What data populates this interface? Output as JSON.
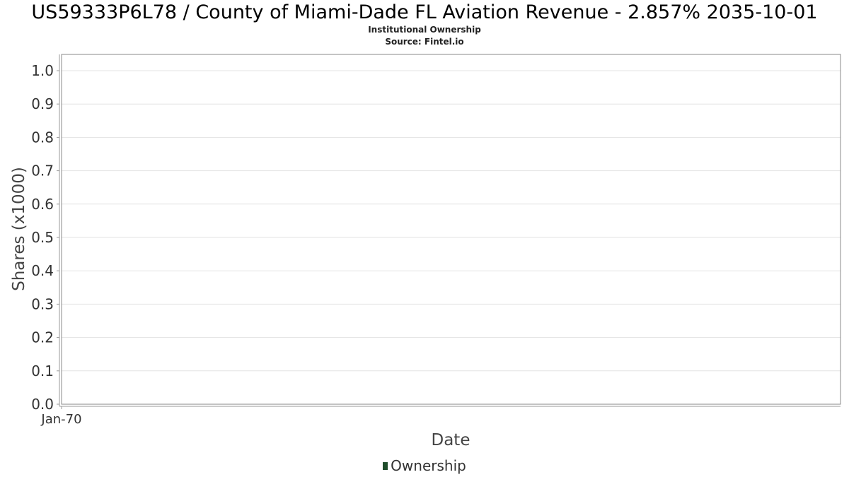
{
  "chart_data": {
    "type": "line",
    "title": "US59333P6L78 / County of Miami-Dade FL Aviation Revenue - 2.857% 2035-10-01",
    "subtitle": "Institutional Ownership",
    "source": "Source: Fintel.io",
    "xlabel": "Date",
    "ylabel": "Shares (x1000)",
    "ylim": [
      0,
      1.05
    ],
    "yticks": [
      "0.0",
      "0.1",
      "0.2",
      "0.3",
      "0.4",
      "0.5",
      "0.6",
      "0.7",
      "0.8",
      "0.9",
      "1.0"
    ],
    "xticks": [
      "Jan-70"
    ],
    "grid": true,
    "legend_position": "bottom",
    "series": [
      {
        "name": "Ownership",
        "color": "#1f4d2b",
        "values": []
      }
    ]
  }
}
